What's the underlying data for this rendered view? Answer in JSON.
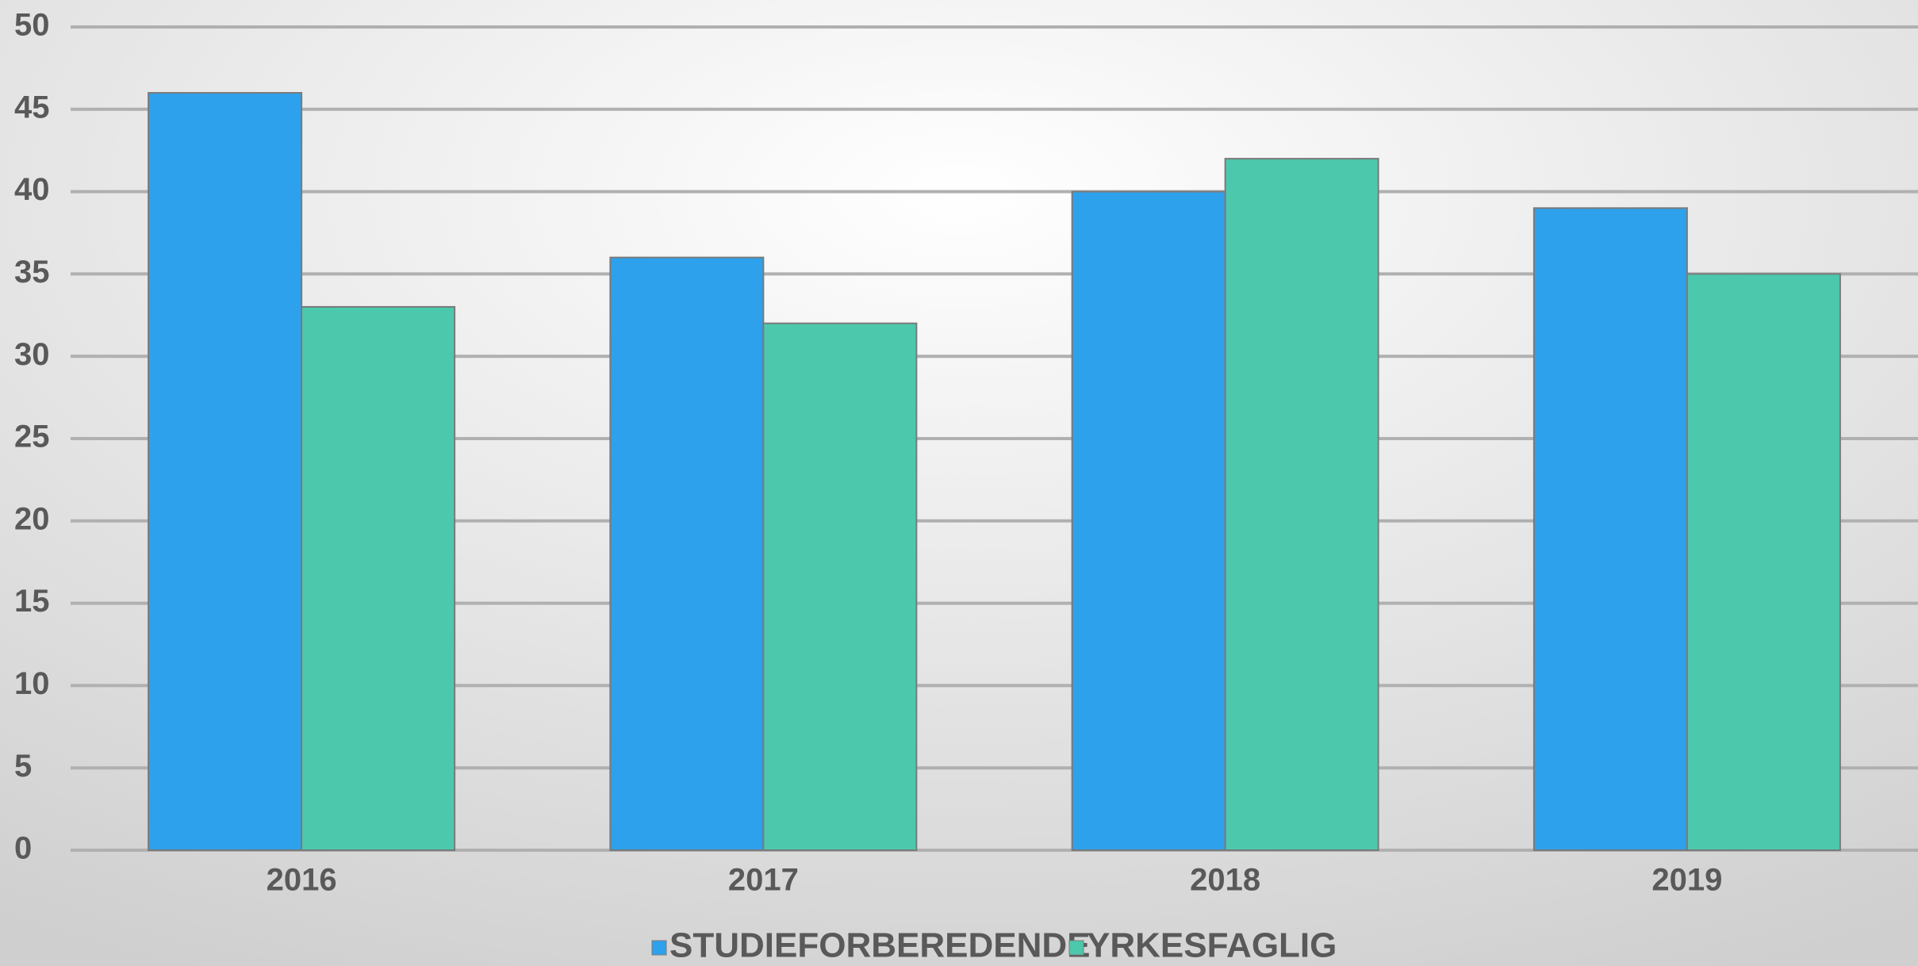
{
  "chart_data": {
    "type": "bar",
    "categories": [
      "2016",
      "2017",
      "2018",
      "2019"
    ],
    "series": [
      {
        "name": "STUDIEFORBEREDENDE",
        "color": "#2ea1ec",
        "values": [
          46,
          36,
          40,
          39
        ]
      },
      {
        "name": "YRKESFAGLIG",
        "color": "#4cc9ad",
        "values": [
          33,
          32,
          42,
          35
        ]
      }
    ],
    "ylim": [
      0,
      50
    ],
    "yticks": [
      0,
      5,
      10,
      15,
      20,
      25,
      30,
      35,
      40,
      45,
      50
    ],
    "grid": true,
    "legend": "bottom"
  }
}
